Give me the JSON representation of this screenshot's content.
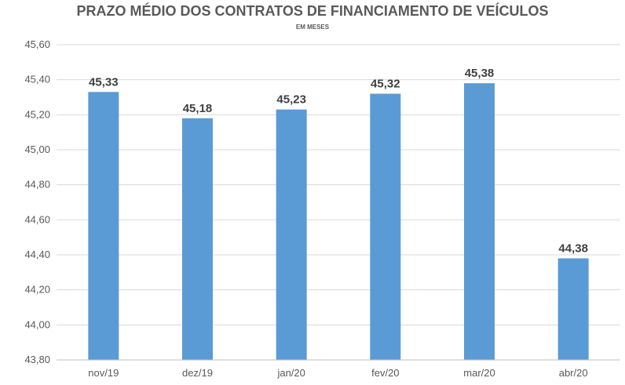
{
  "chart_data": {
    "type": "bar",
    "title": "PRAZO MÉDIO DOS CONTRATOS DE FINANCIAMENTO DE VEÍCULOS",
    "subtitle": "EM MESES",
    "categories": [
      "nov/19",
      "dez/19",
      "jan/20",
      "fev/20",
      "mar/20",
      "abr/20"
    ],
    "values": [
      45.33,
      45.18,
      45.23,
      45.32,
      45.38,
      44.38
    ],
    "value_labels": [
      "45,33",
      "45,18",
      "45,23",
      "45,32",
      "45,38",
      "44,38"
    ],
    "ylim": [
      43.8,
      45.6
    ],
    "yticks": [
      43.8,
      44.0,
      44.2,
      44.4,
      44.6,
      44.8,
      45.0,
      45.2,
      45.4,
      45.6
    ],
    "ytick_labels": [
      "43,80",
      "44,00",
      "44,20",
      "44,40",
      "44,60",
      "44,80",
      "45,00",
      "45,20",
      "45,40",
      "45,60"
    ],
    "bar_color": "#5b9bd5",
    "grid": true,
    "legend": "none"
  }
}
